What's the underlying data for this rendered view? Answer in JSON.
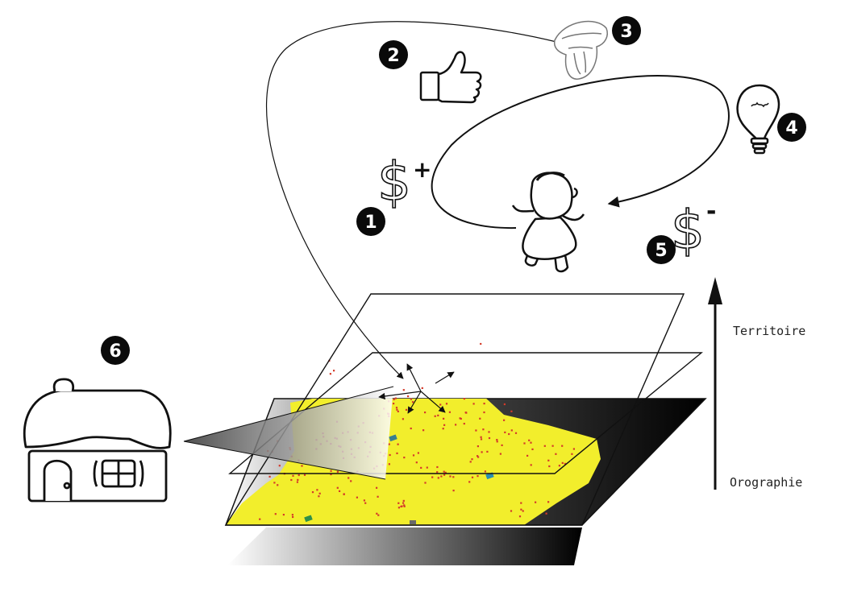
{
  "figure": {
    "markers": {
      "m1": "1",
      "m2": "2",
      "m3": "3",
      "m4": "4",
      "m5": "5",
      "m6": "6"
    },
    "money_plus": {
      "symbol": "$",
      "sign": "+"
    },
    "money_minus": {
      "symbol": "$",
      "sign": "-"
    },
    "axis": {
      "top_label": "Territoire",
      "bottom_label": "Orographie"
    },
    "icons": [
      "thumbs-up-icon",
      "mouth-tongue-icon",
      "light-bulb-icon",
      "child-figure-icon",
      "house-icon"
    ],
    "colors": {
      "terrain_yellow": "#f2ee2c",
      "dots_red": "#d43a2a",
      "marker_black": "#0a0a0a",
      "line": "#111111"
    }
  }
}
